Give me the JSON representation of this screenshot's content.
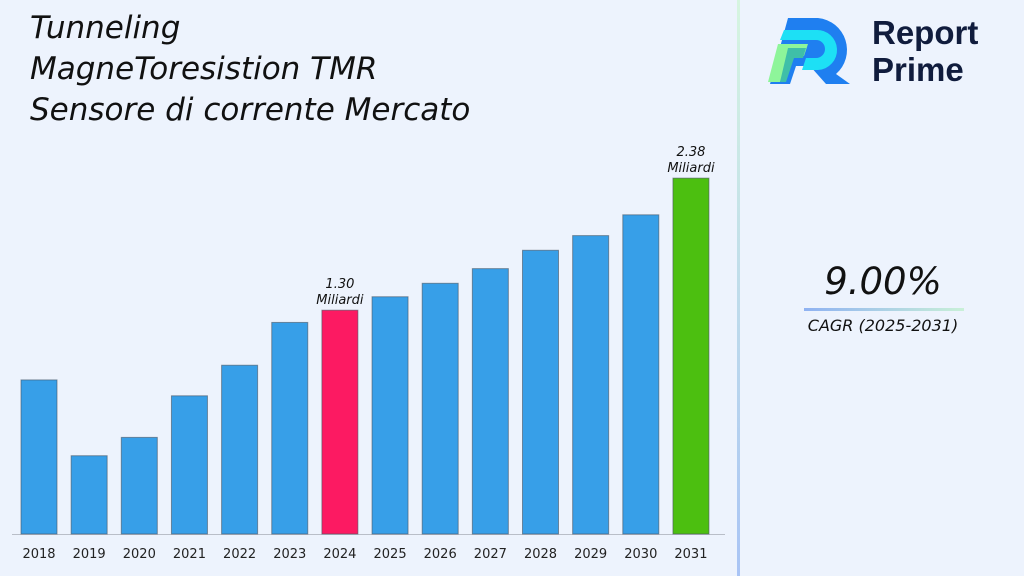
{
  "title_lines": [
    "Tunneling",
    "MagneToresistion TMR",
    "Sensore di corrente Mercato"
  ],
  "brand": {
    "line1": "Report",
    "line2": "Prime"
  },
  "cagr": {
    "value": "9.00%",
    "label": "CAGR (2025-2031)"
  },
  "colors": {
    "default_bar": "#379fe8",
    "highlight_2024": "#fc1a62",
    "highlight_2031": "#4cbf10",
    "background": "#edf3fd"
  },
  "chart_data": {
    "type": "bar",
    "title": "Tunneling MagneToresistion TMR Sensore di corrente Mercato",
    "categories": [
      "2018",
      "2019",
      "2020",
      "2021",
      "2022",
      "2023",
      "2024",
      "2025",
      "2026",
      "2027",
      "2028",
      "2029",
      "2030",
      "2031"
    ],
    "values": [
      0.73,
      0.11,
      0.26,
      0.6,
      0.85,
      1.2,
      1.3,
      1.41,
      1.52,
      1.64,
      1.79,
      1.91,
      2.08,
      2.38
    ],
    "unit": "Miliardi",
    "data_labels": [
      {
        "category": "2024",
        "value": "1.30",
        "unit": "Miliardi"
      },
      {
        "category": "2031",
        "value": "2.38",
        "unit": "Miliardi"
      }
    ],
    "xlabel": "",
    "ylabel": "",
    "ylim": [
      -0.53,
      2.7
    ],
    "grid": false,
    "legend": "none"
  }
}
